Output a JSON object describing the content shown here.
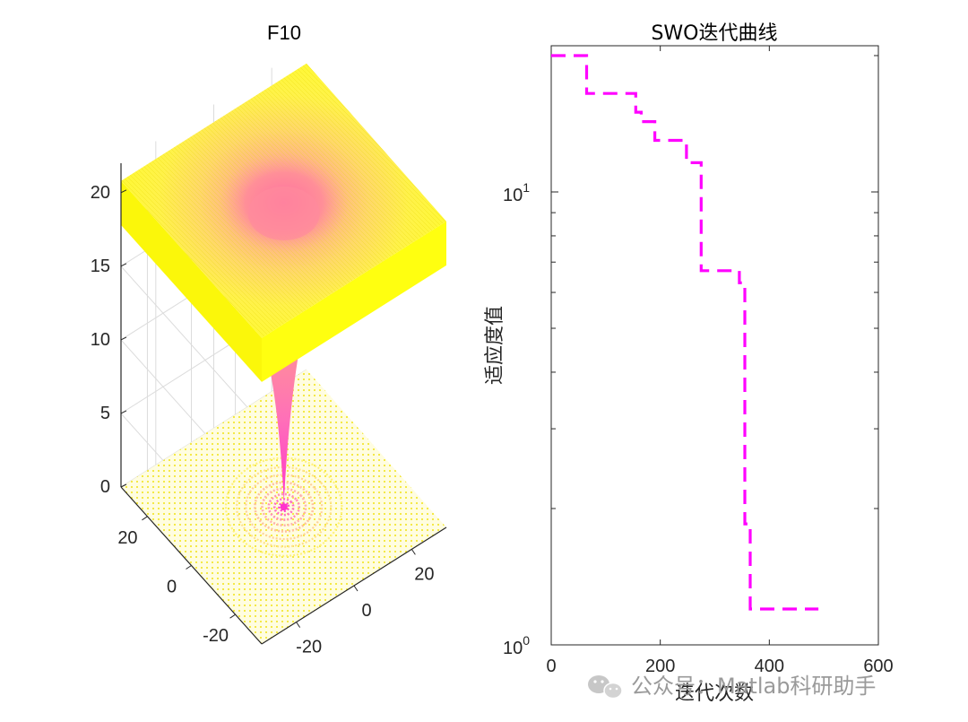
{
  "chart_data": [
    {
      "type": "surface3d",
      "title": "F10",
      "zticks": [
        "0",
        "5",
        "10",
        "15",
        "20"
      ],
      "zlim": [
        0,
        22
      ],
      "xticks": [
        "-20",
        "0",
        "20"
      ],
      "yticks": [
        "-20",
        "0",
        "20"
      ],
      "xlim": [
        -32,
        32
      ],
      "ylim": [
        -32,
        32
      ],
      "grid": true,
      "colormap": [
        "#ff33cc",
        "#ffff00"
      ]
    },
    {
      "type": "line",
      "title": "SWO迭代曲线",
      "xlabel": "迭代次数",
      "ylabel": "适应度值",
      "xlim": [
        0,
        600
      ],
      "ylim": [
        1,
        20
      ],
      "yscale": "log",
      "xticks": [
        "0",
        "200",
        "400",
        "600"
      ],
      "yticks_base": "10",
      "yticks_exp": [
        "0",
        "1"
      ],
      "series": [
        {
          "color": "#ff00ff",
          "style": "dashed",
          "x": [
            0,
            65,
            65,
            155,
            155,
            165,
            165,
            190,
            190,
            248,
            248,
            275,
            275,
            345,
            345,
            355,
            355,
            365,
            365,
            375,
            375,
            490
          ],
          "y": [
            20,
            20,
            16.5,
            16.5,
            15,
            15,
            14.3,
            14.3,
            13,
            13,
            11.6,
            11.6,
            6.7,
            6.7,
            6.3,
            6.3,
            1.85,
            1.85,
            1.2,
            1.2,
            1.2,
            1.2
          ]
        }
      ]
    }
  ],
  "watermark": {
    "icon": "wechat-icon",
    "text": "公众号：Matlab科研助手"
  }
}
